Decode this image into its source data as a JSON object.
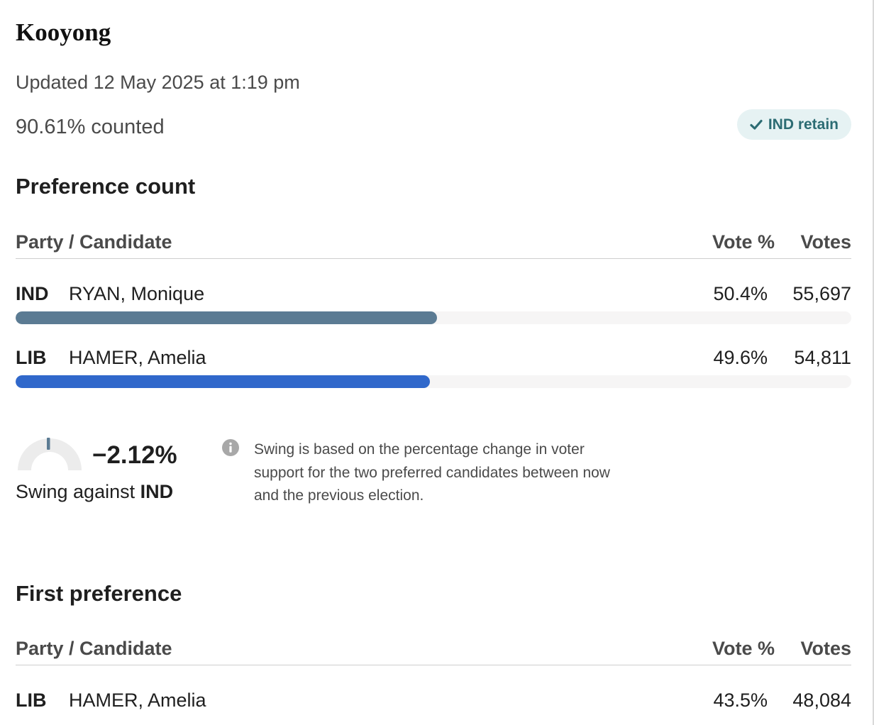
{
  "header": {
    "title": "Kooyong",
    "updated": "Updated 12 May 2025 at 1:19 pm",
    "counted": "90.61% counted",
    "badge": {
      "icon": "check-icon",
      "label": "IND retain",
      "background": "#e6f2f3",
      "color": "#2c6c73"
    }
  },
  "preference_count": {
    "title": "Preference count",
    "columns": {
      "candidate": "Party / Candidate",
      "pct": "Vote %",
      "votes": "Votes"
    },
    "rows": [
      {
        "party": "IND",
        "name": "RYAN, Monique",
        "pct_text": "50.4%",
        "votes": "55,697",
        "share": 50.4,
        "color": "#5b7b93"
      },
      {
        "party": "LIB",
        "name": "HAMER, Amelia",
        "pct_text": "49.6%",
        "votes": "54,811",
        "share": 49.6,
        "color": "#3068cb"
      }
    ]
  },
  "swing": {
    "value": "−2.12%",
    "label_prefix": "Swing against ",
    "party": "IND",
    "note": "Swing is based on the percentage change in voter support for the two preferred candidates between now and the previous election.",
    "gauge_icon": "swing-gauge-icon",
    "info_icon": "info-icon"
  },
  "first_preference": {
    "title": "First preference",
    "columns": {
      "candidate": "Party / Candidate",
      "pct": "Vote %",
      "votes": "Votes"
    },
    "rows": [
      {
        "party": "LIB",
        "name": "HAMER, Amelia",
        "pct_text": "43.5%",
        "votes": "48,084"
      }
    ]
  }
}
